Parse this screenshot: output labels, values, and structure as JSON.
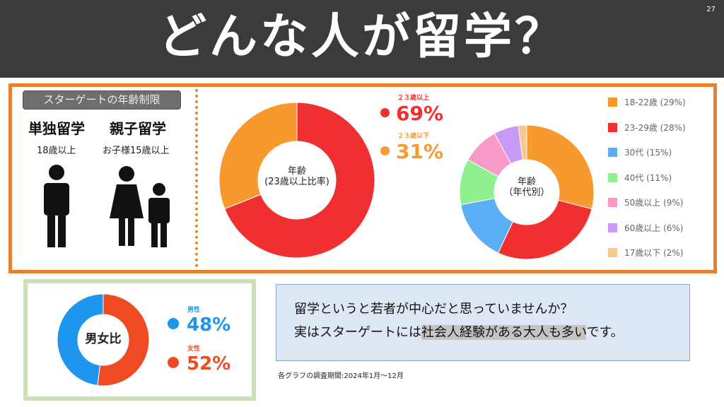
{
  "header": {
    "title": "どんな人が留学？",
    "page_number": "27"
  },
  "age_limit": {
    "tag": "スターゲートの年齢制限",
    "solo": {
      "title": "単独留学",
      "limit": "18歳以上"
    },
    "parent_child": {
      "title": "親子留学",
      "limit": "お子様15歳以上"
    }
  },
  "chart_data": [
    {
      "type": "pie",
      "donut": true,
      "center_label": "年齢\n(23歳以上比率)",
      "categories": [
        "２３歳以上",
        "２３歳以下"
      ],
      "values": [
        69,
        31
      ],
      "value_labels": [
        "69%",
        "31%"
      ],
      "colors": [
        "#f03030",
        "#f7992f"
      ]
    },
    {
      "type": "pie",
      "donut": true,
      "center_label": "年齢\n（年代別）",
      "categories": [
        "18-22歳 (29%)",
        "23-29歳 (28%)",
        "30代 (15%)",
        "40代 (11%)",
        "50歳以上 (9%)",
        "60歳以上 (6%)",
        "17歳以下 (2%)"
      ],
      "values": [
        29,
        28,
        15,
        11,
        9,
        6,
        2
      ],
      "colors": [
        "#f7992f",
        "#f03030",
        "#5aaef5",
        "#8ef08e",
        "#f79ac8",
        "#c79af5",
        "#f8c890"
      ],
      "legend": "right"
    },
    {
      "type": "pie",
      "donut": true,
      "center_label": "男女比",
      "categories": [
        "女性",
        "男性"
      ],
      "values": [
        52,
        48
      ],
      "value_labels": [
        "52%",
        "48%"
      ],
      "colors": [
        "#ef4b23",
        "#1e96f0"
      ]
    }
  ],
  "message": {
    "line1": "留学というと若者が中心だと思っていませんか？",
    "line2_pre": "実はスターゲートには",
    "line2_hl": "社会人経験がある大人も多い",
    "line2_post": "です。"
  },
  "footnote": "各グラフの調査期間:2024年1月〜12月"
}
